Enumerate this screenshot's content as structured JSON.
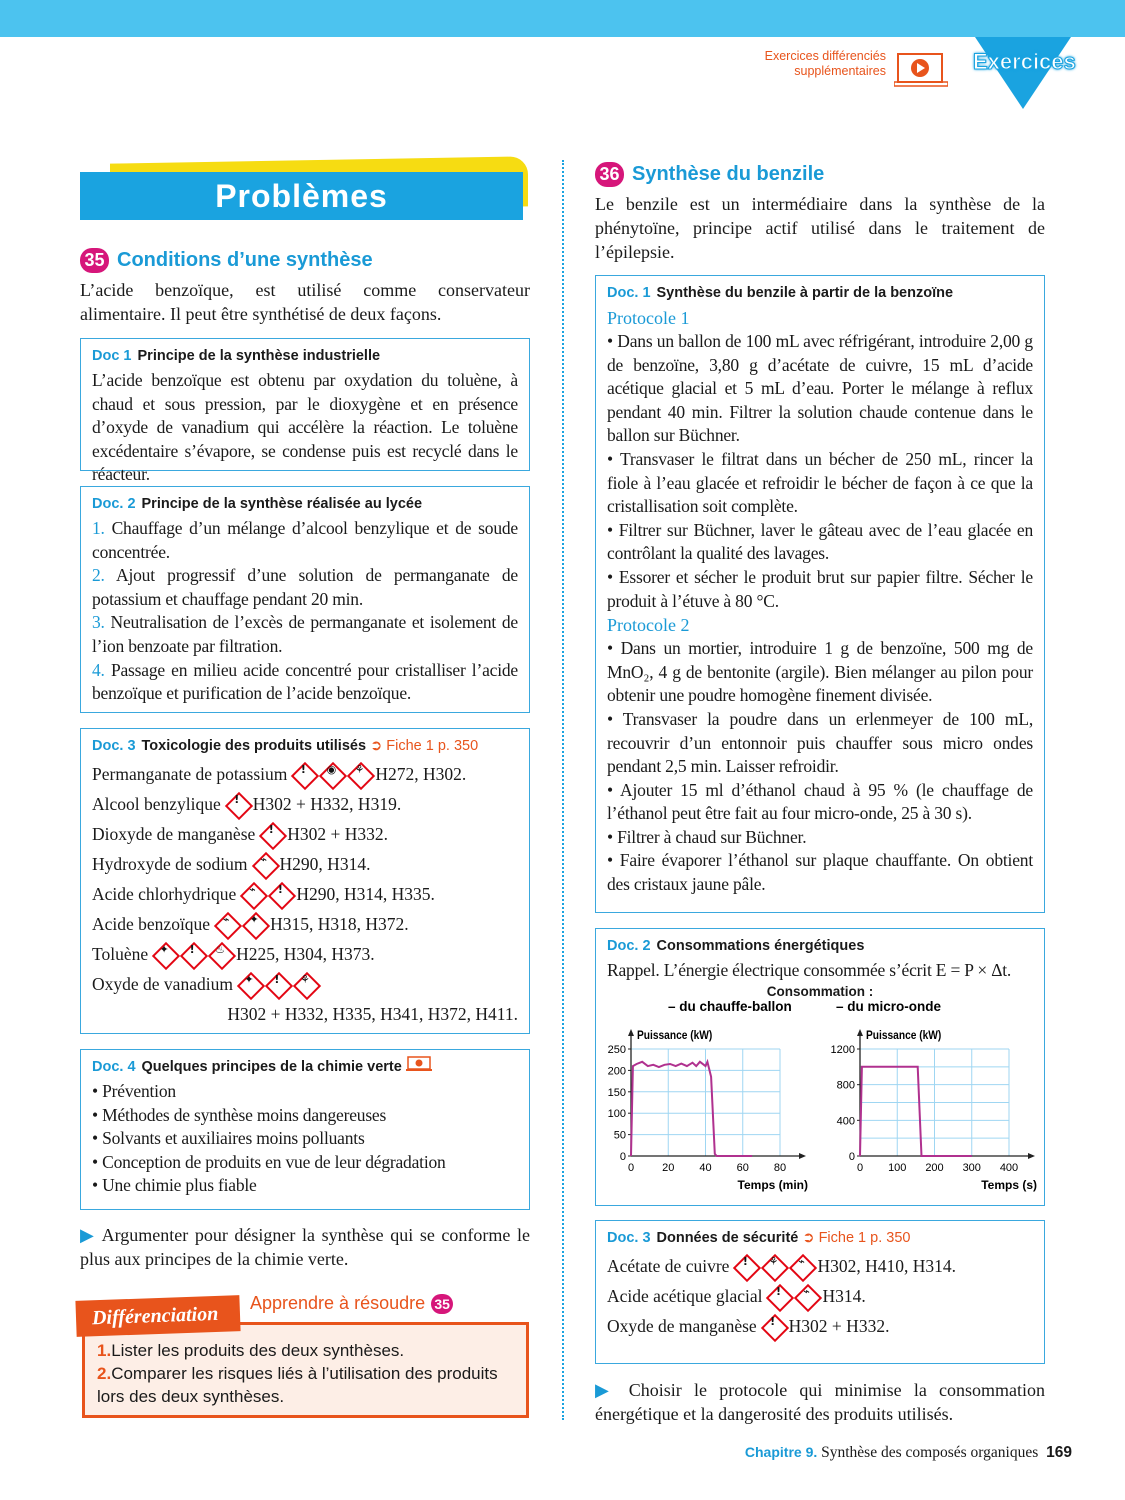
{
  "header": {
    "extra_line1": "Exercices différenciés",
    "extra_line2": "supplémentaires",
    "badge": "Exercices",
    "play_icon": "laptop-play-icon"
  },
  "left": {
    "section_title": "Problèmes",
    "ex_num": "35",
    "ex_title": "Conditions d’une synthèse",
    "intro": "L’acide benzoïque, est utilisé comme conservateur alimentaire. Il peut être synthétisé de deux façons.",
    "doc1": {
      "label": "Doc 1",
      "title": "Principe de la synthèse industrielle",
      "text": "L’acide benzoïque est obtenu par oxydation du toluène, à chaud et sous pression, par le dioxygène et en présence d’oxyde de vanadium qui accélère la réaction. Le toluène excédentaire s’évapore, se condense puis est recyclé dans le réacteur."
    },
    "doc2": {
      "label": "Doc. 2",
      "title": "Principe de la synthèse réalisée au lycée",
      "steps": [
        {
          "n": "1.",
          "t": "Chauffage d’un mélange d’alcool benzylique et de soude concentrée."
        },
        {
          "n": "2.",
          "t": "Ajout progressif d’une solution de permanganate de potassium et chauffage pendant 20 min."
        },
        {
          "n": "3.",
          "t": "Neutralisation de l’excès de permanganate et isolement de l’ion benzoate par filtration."
        },
        {
          "n": "4.",
          "t": "Passage en milieu acide concentré pour cristalliser l’acide benzoïque et purification de l’acide benzoïque."
        }
      ]
    },
    "doc3": {
      "label": "Doc. 3",
      "title": "Toxicologie des produits utilisés",
      "link": "Fiche 1 p. 350",
      "rows": [
        {
          "name": "Permanganate de potassium",
          "pictos": [
            "exclamation",
            "oxidizer",
            "environment"
          ],
          "codes": "H272, H302."
        },
        {
          "name": "Alcool benzylique",
          "pictos": [
            "exclamation"
          ],
          "codes": "H302 + H332, H319."
        },
        {
          "name": "Dioxyde de manganèse",
          "pictos": [
            "exclamation"
          ],
          "codes": "H302 + H332."
        },
        {
          "name": "Hydroxyde de sodium",
          "pictos": [
            "corrosive"
          ],
          "codes": "H290, H314."
        },
        {
          "name": "Acide chlorhydrique",
          "pictos": [
            "corrosive",
            "exclamation"
          ],
          "codes": "H290, H314, H335."
        },
        {
          "name": "Acide benzoïque",
          "pictos": [
            "corrosive",
            "health-hazard"
          ],
          "codes": "H315, H318, H372."
        },
        {
          "name": "Toluène",
          "pictos": [
            "health-hazard",
            "exclamation",
            "flammable"
          ],
          "codes": "H225, H304, H373."
        },
        {
          "name": "Oxyde de vanadium",
          "pictos": [
            "health-hazard",
            "exclamation",
            "environment"
          ],
          "codes": ""
        }
      ],
      "last_codes": "H302 + H332, H335, H341, H372, H411."
    },
    "doc4": {
      "label": "Doc. 4",
      "title": "Quelques principes de la chimie verte",
      "items": [
        "• Prévention",
        "• Méthodes de synthèse moins dangereuses",
        "• Solvants et auxiliaires moins polluants",
        "• Conception de produits en vue de leur dégradation",
        "• Une chimie plus fiable"
      ]
    },
    "task": "Argumenter pour désigner la synthèse qui se conforme le plus aux principes de la chimie verte.",
    "diff": {
      "tab": "Différenciation",
      "link": "Apprendre à résoudre",
      "link_num": "35",
      "items": [
        {
          "n": "1.",
          "t": "Lister les produits des deux synthèses."
        },
        {
          "n": "2.",
          "t": "Comparer les risques liés à l’utilisation des produits lors des deux synthèses."
        }
      ]
    }
  },
  "right": {
    "ex_num": "36",
    "ex_title": "Synthèse du benzile",
    "intro": "Le benzile est un intermédiaire dans la synthèse de la phénytoïne, principe actif utilisé dans le traitement de l’épilepsie.",
    "doc1": {
      "label": "Doc. 1",
      "title": "Synthèse du benzile à partir de la benzoïne",
      "p1_title": "Protocole 1",
      "p1": [
        "• Dans un ballon de 100 mL avec réfrigérant, introduire 2,00 g de benzoïne, 3,80 g d’acétate de cuivre, 15 mL d’acide acétique glacial et 5 mL d’eau. Porter le mélange à reflux pendant 40 min. Filtrer la solution chaude contenue dans le ballon sur Büchner.",
        "• Transvaser le filtrat dans un bécher de 250 mL, rincer la fiole à l’eau glacée et refroidir le bécher de façon à ce que la cristallisation soit complète.",
        "• Filtrer sur Büchner, laver le gâteau avec de l’eau glacée en contrôlant la qualité des lavages.",
        "• Essorer et sécher le produit brut sur papier filtre. Sécher le produit à l’étuve à 80 °C."
      ],
      "p2_title": "Protocole 2",
      "p2": [
        "• Dans un mortier, introduire 1 g de benzoïne, 500 mg de MnO₂, 4 g de bentonite (argile). Bien mélanger au pilon pour obtenir une poudre homogène finement divisée.",
        "• Transvaser la poudre dans un erlenmeyer de 100 mL, recouvrir d’un entonnoir puis chauffer sous micro ondes pendant 2,5 min. Laisser refroidir.",
        "• Ajouter 15 ml d’éthanol chaud à 95 % (le chauffage de l’éthanol peut être fait au four micro-onde, 25 à 30 s).",
        "• Filtrer à chaud sur Büchner.",
        "• Faire évaporer l’éthanol sur plaque chauffante. On obtient des cristaux jaune pâle."
      ]
    },
    "doc2": {
      "label": "Doc. 2",
      "title": "Consommations énergétiques",
      "rappel": "Rappel. L’énergie électrique consommée s’écrit E = P × Δt.",
      "consommation": "Consommation :"
    },
    "doc3": {
      "label": "Doc. 3",
      "title": "Données de sécurité",
      "link": "Fiche 1 p. 350",
      "rows": [
        {
          "name": "Acétate de cuivre",
          "pictos": [
            "exclamation",
            "environment",
            "corrosive"
          ],
          "codes": "H302, H410, H314."
        },
        {
          "name": "Acide acétique glacial",
          "pictos": [
            "exclamation",
            "corrosive"
          ],
          "codes": "H314."
        },
        {
          "name": "Oxyde de manganèse",
          "pictos": [
            "exclamation"
          ],
          "codes": "H302 + H332."
        }
      ]
    },
    "task": "Choisir le protocole qui minimise la consommation énergétique et la dangerosité des produits utilisés."
  },
  "footer": {
    "chapter": "Chapitre 9.",
    "title": "Synthèse des composés organiques",
    "page": "169"
  },
  "colors": {
    "blue": "#1a9ad6",
    "orange": "#e8541c",
    "magenta": "#d6167a",
    "curve": "#b0318f",
    "hazard": "#e30613"
  },
  "chart_data": [
    {
      "type": "line",
      "title": "– du chauffe-ballon",
      "ylabel": "Puissance (kW)",
      "xlabel": "Temps (min)",
      "xlim": [
        0,
        80
      ],
      "ylim": [
        0,
        250
      ],
      "xticks": [
        0,
        20,
        40,
        60,
        80
      ],
      "yticks": [
        0,
        50,
        100,
        150,
        200,
        250
      ],
      "grid": true,
      "x": [
        0,
        1,
        3,
        6,
        9,
        12,
        15,
        18,
        21,
        24,
        27,
        30,
        33,
        35,
        37,
        40,
        41,
        43,
        45,
        46,
        65
      ],
      "y": [
        0,
        210,
        215,
        220,
        210,
        213,
        208,
        213,
        215,
        210,
        216,
        210,
        218,
        210,
        220,
        210,
        220,
        185,
        5,
        0,
        0
      ]
    },
    {
      "type": "line",
      "title": "– du micro-onde",
      "ylabel": "Puissance (kW)",
      "xlabel": "Temps (s)",
      "xlim": [
        0,
        400
      ],
      "ylim": [
        0,
        1200
      ],
      "xticks": [
        0,
        100,
        200,
        300,
        400
      ],
      "yticks": [
        0,
        400,
        800,
        1200
      ],
      "grid": true,
      "x": [
        0,
        5,
        155,
        165,
        300
      ],
      "y": [
        0,
        1000,
        1000,
        0,
        0
      ]
    }
  ]
}
